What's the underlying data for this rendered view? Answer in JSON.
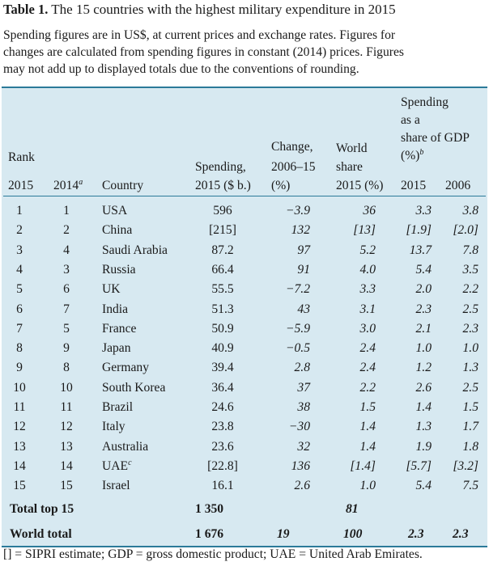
{
  "table": {
    "title_bold": "Table 1.",
    "title_text": " The 15 countries with the highest military expenditure in 2015",
    "description_lines": [
      "Spending figures are in US$, at current prices and exchange rates. Figures for",
      "changes are calculated from spending figures in constant (2014) prices. Figures",
      "may not add up to displayed totals due to the conventions of rounding."
    ],
    "headers": {
      "rank": "Rank",
      "rank_2015": "2015",
      "rank_2014": "2014",
      "rank_2014_sup": "a",
      "country": "Country",
      "spending_l1": "Spending,",
      "spending_l2": "2015 ($ b.)",
      "change_l1": "Change,",
      "change_l2": "2006–15",
      "change_l3": "(%)",
      "world_l1": "World",
      "world_l2": "share",
      "world_l3": "2015 (%)",
      "gdp_l1": "Spending",
      "gdp_l2": "as a",
      "gdp_l3": "share of GDP",
      "gdp_l4": "(%)",
      "gdp_sup": "b",
      "gdp_2015": "2015",
      "gdp_2006": "2006"
    },
    "rows": [
      {
        "r15": "1",
        "r14": "1",
        "country": "USA",
        "sup": "",
        "spend": "596",
        "change": "−3.9",
        "world": "36",
        "g15": "3.3",
        "g06": "3.8"
      },
      {
        "r15": "2",
        "r14": "2",
        "country": "China",
        "sup": "",
        "spend": "[215]",
        "change": "132",
        "world": "[13]",
        "g15": "[1.9]",
        "g06": "[2.0]"
      },
      {
        "r15": "3",
        "r14": "4",
        "country": "Saudi Arabia",
        "sup": "",
        "spend": "87.2",
        "change": "97",
        "world": "5.2",
        "g15": "13.7",
        "g06": "7.8"
      },
      {
        "r15": "4",
        "r14": "3",
        "country": "Russia",
        "sup": "",
        "spend": "66.4",
        "change": "91",
        "world": "4.0",
        "g15": "5.4",
        "g06": "3.5"
      },
      {
        "r15": "5",
        "r14": "6",
        "country": "UK",
        "sup": "",
        "spend": "55.5",
        "change": "−7.2",
        "world": "3.3",
        "g15": "2.0",
        "g06": "2.2"
      },
      {
        "r15": "6",
        "r14": "7",
        "country": "India",
        "sup": "",
        "spend": "51.3",
        "change": "43",
        "world": "3.1",
        "g15": "2.3",
        "g06": "2.5"
      },
      {
        "r15": "7",
        "r14": "5",
        "country": "France",
        "sup": "",
        "spend": "50.9",
        "change": "−5.9",
        "world": "3.0",
        "g15": "2.1",
        "g06": "2.3"
      },
      {
        "r15": "8",
        "r14": "9",
        "country": "Japan",
        "sup": "",
        "spend": "40.9",
        "change": "−0.5",
        "world": "2.4",
        "g15": "1.0",
        "g06": "1.0"
      },
      {
        "r15": "9",
        "r14": "8",
        "country": "Germany",
        "sup": "",
        "spend": "39.4",
        "change": "2.8",
        "world": "2.4",
        "g15": "1.2",
        "g06": "1.3"
      },
      {
        "r15": "10",
        "r14": "10",
        "country": "South Korea",
        "sup": "",
        "spend": "36.4",
        "change": "37",
        "world": "2.2",
        "g15": "2.6",
        "g06": "2.5"
      },
      {
        "r15": "11",
        "r14": "11",
        "country": "Brazil",
        "sup": "",
        "spend": "24.6",
        "change": "38",
        "world": "1.5",
        "g15": "1.4",
        "g06": "1.5"
      },
      {
        "r15": "12",
        "r14": "12",
        "country": "Italy",
        "sup": "",
        "spend": "23.8",
        "change": "−30",
        "world": "1.4",
        "g15": "1.3",
        "g06": "1.7"
      },
      {
        "r15": "13",
        "r14": "13",
        "country": "Australia",
        "sup": "",
        "spend": "23.6",
        "change": "32",
        "world": "1.4",
        "g15": "1.9",
        "g06": "1.8"
      },
      {
        "r15": "14",
        "r14": "14",
        "country": "UAE",
        "sup": "c",
        "spend": "[22.8]",
        "change": "136",
        "world": "[1.4]",
        "g15": "[5.7]",
        "g06": "[3.2]"
      },
      {
        "r15": "15",
        "r14": "15",
        "country": "Israel",
        "sup": "",
        "spend": "16.1",
        "change": "2.6",
        "world": "1.0",
        "g15": "5.4",
        "g06": "7.5"
      }
    ],
    "totals": [
      {
        "label": "Total top 15",
        "spend": "1 350",
        "change": "",
        "world": "81",
        "g15": "",
        "g06": ""
      },
      {
        "label": "World total",
        "spend": "1 676",
        "change": "19",
        "world": "100",
        "g15": "2.3",
        "g06": "2.3"
      }
    ],
    "footnote": "[] = SIPRI estimate; GDP = gross domestic product; UAE = United Arab Emirates."
  }
}
